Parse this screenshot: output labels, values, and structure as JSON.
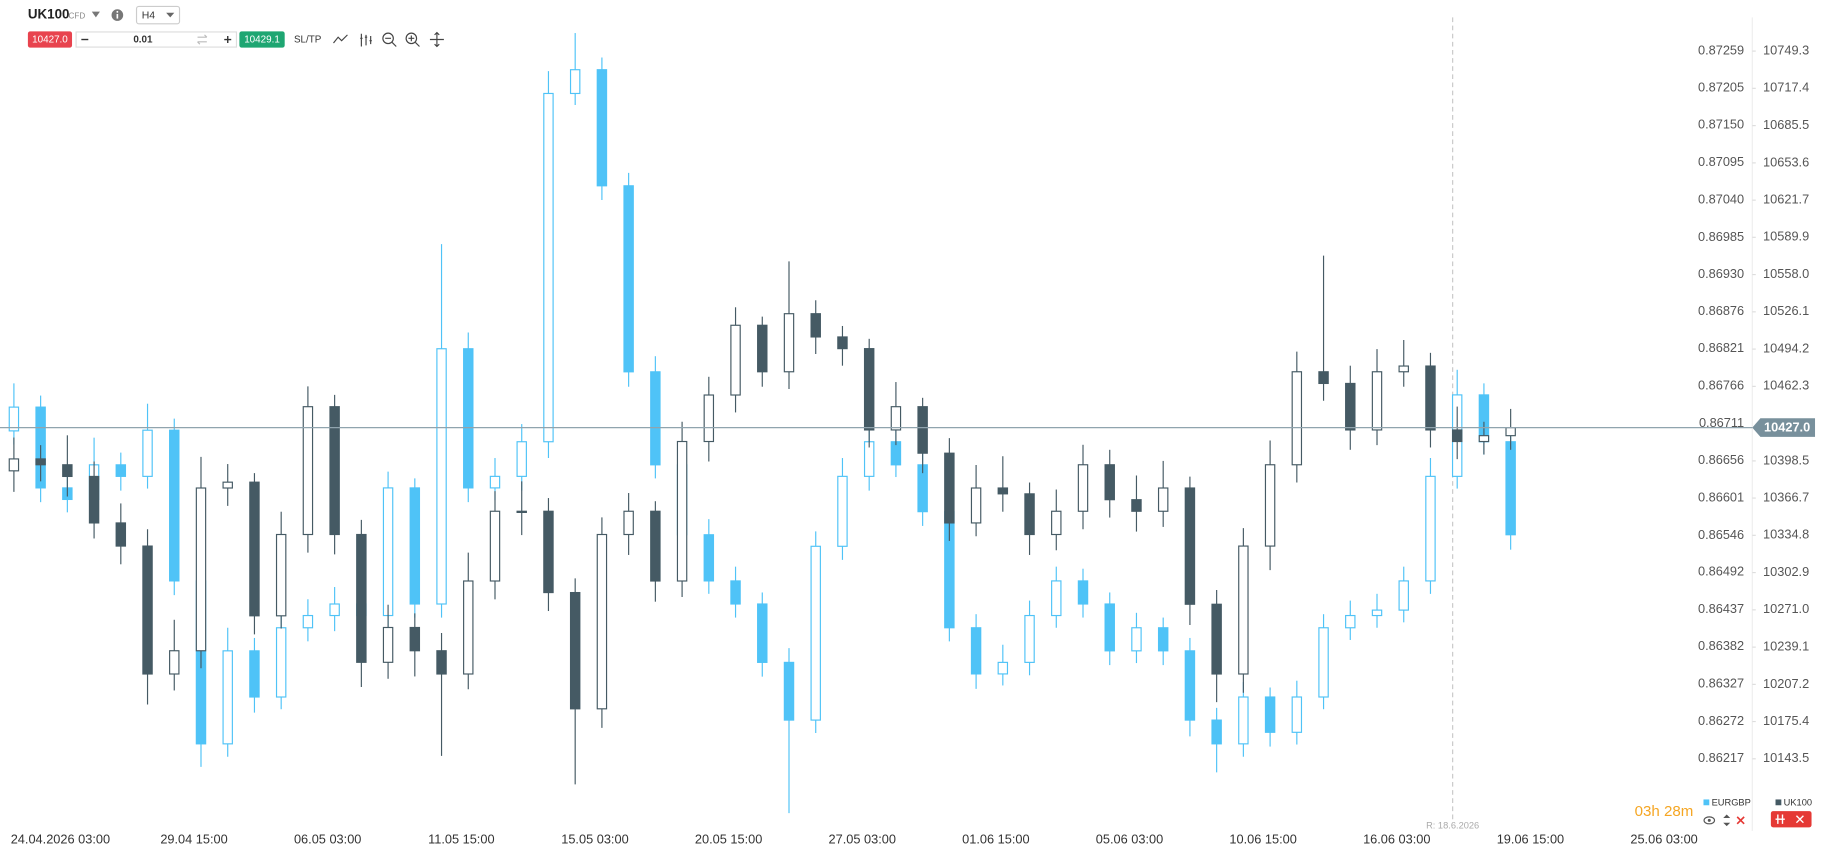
{
  "toolbar": {
    "symbol": "UK100",
    "instrument_type": "CFD",
    "timeframe": "H4",
    "sell_price": "10427.0",
    "quantity": "0.01",
    "buy_price": "10429.1",
    "sl_tp": "SL/TP"
  },
  "countdown": "03h 28m",
  "chart_data": {
    "type": "candlestick",
    "xlim": [
      -0.52,
      64.91
    ],
    "xticks": [
      {
        "value": 1.74,
        "label": "24.04.2026 03:00"
      },
      {
        "value": 6.74,
        "label": "29.04 15:00"
      },
      {
        "value": 11.74,
        "label": "06.05 03:00"
      },
      {
        "value": 16.74,
        "label": "11.05 15:00"
      },
      {
        "value": 21.74,
        "label": "15.05 03:00"
      },
      {
        "value": 26.74,
        "label": "20.05 15:00"
      },
      {
        "value": 31.74,
        "label": "27.05 03:00"
      },
      {
        "value": 36.74,
        "label": "01.06 15:00"
      },
      {
        "value": 41.74,
        "label": "05.06 03:00"
      },
      {
        "value": 46.74,
        "label": "10.06 15:00"
      },
      {
        "value": 51.74,
        "label": "16.06 03:00"
      },
      {
        "value": 56.74,
        "label": "19.06 15:00"
      },
      {
        "value": 61.74,
        "label": "25.06 03:00"
      }
    ],
    "ylim": [
      10091.8,
      10778.1
    ],
    "yticks": [
      10749.3,
      10717.4,
      10685.5,
      10653.6,
      10621.7,
      10589.9,
      {
        "value": 10558,
        "label": "10558.0"
      },
      10526.1,
      10494.2,
      10462.3,
      10398.5,
      10366.7,
      10334.8,
      10302.9,
      {
        "value": 10271,
        "label": "10271.0"
      },
      10239.1,
      10207.2,
      10175.4,
      10143.5
    ],
    "y2lim": [
      0.86128,
      0.87309
    ],
    "y2ticks": [
      0.87259,
      0.87205,
      {
        "value": 0.8715,
        "label": "0.87150"
      },
      0.87095,
      {
        "value": 0.8704,
        "label": "0.87040"
      },
      0.86985,
      {
        "value": 0.8693,
        "label": "0.86930"
      },
      0.86876,
      0.86821,
      0.86766,
      0.86711,
      0.86656,
      0.86601,
      0.86546,
      0.86492,
      0.86437,
      0.86382,
      0.86327,
      0.86272,
      0.86217
    ],
    "price_line": {
      "value": 10427,
      "label": "10427.0"
    },
    "marker": {
      "x": 53.83,
      "label": "R: 18.6.2026"
    },
    "series": [
      {
        "name": "EURGBP",
        "axis": "y2",
        "color": "#4fc3f7",
        "open": [
          0.867,
          0.86735,
          0.86616,
          0.86599,
          0.8665,
          0.86633,
          0.86701,
          0.86479,
          0.86239,
          0.86376,
          0.86308,
          0.8641,
          0.86428,
          0.86445,
          0.86428,
          0.86616,
          0.86445,
          0.86821,
          0.86616,
          0.86633,
          0.86684,
          0.87197,
          0.87232,
          0.87061,
          0.86787,
          0.8665,
          0.86547,
          0.86479,
          0.86445,
          0.86359,
          0.86274,
          0.8653,
          0.86633,
          0.86684,
          0.8665,
          0.86581,
          0.8641,
          0.86342,
          0.86359,
          0.86428,
          0.86479,
          0.86445,
          0.86376,
          0.8641,
          0.86376,
          0.86274,
          0.86239,
          0.86308,
          0.86256,
          0.86308,
          0.8641,
          0.86428,
          0.86436,
          0.86479,
          0.86633,
          0.86753,
          0.86684
        ],
        "high": [
          0.8677,
          0.86752,
          0.8664,
          0.8669,
          0.86668,
          0.8674,
          0.86718,
          0.865,
          0.8641,
          0.86395,
          0.8644,
          0.86452,
          0.8647,
          0.86461,
          0.8664,
          0.8663,
          0.86975,
          0.86845,
          0.8666,
          0.8671,
          0.8723,
          0.87286,
          0.8725,
          0.8708,
          0.8681,
          0.86668,
          0.8657,
          0.865,
          0.86462,
          0.8638,
          0.86552,
          0.8666,
          0.86705,
          0.8671,
          0.86668,
          0.866,
          0.8643,
          0.86385,
          0.8645,
          0.865,
          0.86497,
          0.86462,
          0.86432,
          0.86425,
          0.86395,
          0.86292,
          0.8633,
          0.86322,
          0.86332,
          0.8643,
          0.8645,
          0.8646,
          0.865,
          0.8666,
          0.8679,
          0.8677,
          0.86705
        ],
        "low": [
          0.8668,
          0.86595,
          0.8658,
          0.86582,
          0.86612,
          0.86615,
          0.86458,
          0.86205,
          0.8622,
          0.86285,
          0.8629,
          0.8639,
          0.86405,
          0.8641,
          0.86408,
          0.86425,
          0.86425,
          0.86595,
          0.86598,
          0.86612,
          0.8666,
          0.8718,
          0.8704,
          0.86765,
          0.8663,
          0.86528,
          0.8646,
          0.86425,
          0.86338,
          0.86137,
          0.86255,
          0.8651,
          0.86612,
          0.86632,
          0.8656,
          0.8639,
          0.8632,
          0.86325,
          0.8634,
          0.8641,
          0.86425,
          0.86355,
          0.86358,
          0.86355,
          0.8625,
          0.86197,
          0.8622,
          0.86235,
          0.86238,
          0.8629,
          0.86392,
          0.8641,
          0.86418,
          0.8646,
          0.86615,
          0.86665,
          0.86525
        ],
        "close": [
          0.86735,
          0.86616,
          0.86599,
          0.8665,
          0.86633,
          0.86701,
          0.86479,
          0.86239,
          0.86376,
          0.86308,
          0.8641,
          0.86428,
          0.86445,
          0.86428,
          0.86616,
          0.86445,
          0.86821,
          0.86616,
          0.86633,
          0.86684,
          0.87197,
          0.87232,
          0.87061,
          0.86787,
          0.8665,
          0.86547,
          0.86479,
          0.86445,
          0.86359,
          0.86274,
          0.8653,
          0.86633,
          0.86684,
          0.8665,
          0.86581,
          0.8641,
          0.86342,
          0.86359,
          0.86428,
          0.86479,
          0.86445,
          0.86376,
          0.8641,
          0.86376,
          0.86274,
          0.86239,
          0.86308,
          0.86256,
          0.86308,
          0.8641,
          0.86428,
          0.86436,
          0.86479,
          0.86633,
          0.86753,
          0.86684,
          0.86547
        ]
      },
      {
        "name": "UK100",
        "color": "#455a64",
        "open": [
          10390,
          10400.2,
          10395.2,
          10385.2,
          10345.4,
          10325.6,
          10216.1,
          10236,
          10375.3,
          10380.3,
          10265.9,
          10335.5,
          10444.9,
          10335.5,
          10226.1,
          10255.9,
          10236,
          10216.1,
          10295.7,
          10355.4,
          10355.4,
          10285.8,
          10186.3,
          10335.5,
          10355.4,
          10295.7,
          10415.1,
          10454.9,
          10514.6,
          10474.8,
          10524.5,
          10504.6,
          10494.6,
          10425,
          10444.9,
          10405.1,
          10345.4,
          10375.3,
          10370.3,
          10335.5,
          10355.4,
          10395.2,
          10365.3,
          10355.4,
          10375.3,
          10275.8,
          10216.1,
          10325.6,
          10395.2,
          10474.8,
          10464.8,
          10425,
          10474.8,
          10479.7,
          10425,
          10415.1,
          10420.1
        ],
        "high": [
          10418.5,
          10412,
          10420.4,
          10398,
          10362.1,
          10340,
          10262.5,
          10402,
          10395.8,
          10388,
          10355,
          10462.3,
          10455,
          10348,
          10275.4,
          10268,
          10251.2,
          10320,
          10372.6,
          10381,
          10366.7,
          10298,
          10350.2,
          10371,
          10364,
          10432,
          10470.5,
          10530,
          10522,
          10569.3,
          10536,
          10514,
          10503,
          10466,
          10452.5,
          10418,
          10395,
          10402.5,
          10380,
          10374,
          10412.3,
          10408,
          10386,
          10398.5,
          10385,
          10288,
          10341,
          10416,
          10492,
          10574.2,
          10480,
          10494.2,
          10502,
          10491,
          10445,
          10432,
          10443
        ],
        "low": [
          10372,
          10381,
          10368,
          10332.1,
          10310,
          10190,
          10202,
          10221,
          10360,
          10250,
          10255,
          10320,
          10318.5,
          10205,
          10212,
          10214,
          10146,
          10203,
          10280,
          10335,
          10270,
          10121.6,
          10170,
          10318,
          10278,
          10282,
          10398,
          10440,
          10462,
          10460,
          10490,
          10480,
          10410,
          10412,
          10388,
          10330,
          10334,
          10355,
          10318,
          10322,
          10340,
          10350,
          10338,
          10342,
          10258,
          10192,
          10200,
          10305,
          10380,
          10450,
          10408,
          10412,
          10462,
          10410,
          10400,
          10404,
          10408
        ],
        "close": [
          10400.2,
          10395.2,
          10385.2,
          10345.4,
          10325.6,
          10216.1,
          10236,
          10375.3,
          10380.3,
          10265.9,
          10335.5,
          10444.9,
          10335.5,
          10226.1,
          10255.9,
          10236,
          10216.1,
          10295.7,
          10355.4,
          10355.4,
          10285.8,
          10186.3,
          10335.5,
          10355.4,
          10295.7,
          10415.1,
          10454.9,
          10514.6,
          10474.8,
          10524.5,
          10504.6,
          10494.6,
          10425,
          10444.9,
          10405.1,
          10345.4,
          10375.3,
          10370.3,
          10335.5,
          10355.4,
          10395.2,
          10365.3,
          10355.4,
          10375.3,
          10275.8,
          10216.1,
          10325.6,
          10395.2,
          10474.8,
          10464.8,
          10425,
          10474.8,
          10479.7,
          10425,
          10415.1,
          10420.1,
          10427
        ]
      }
    ]
  }
}
